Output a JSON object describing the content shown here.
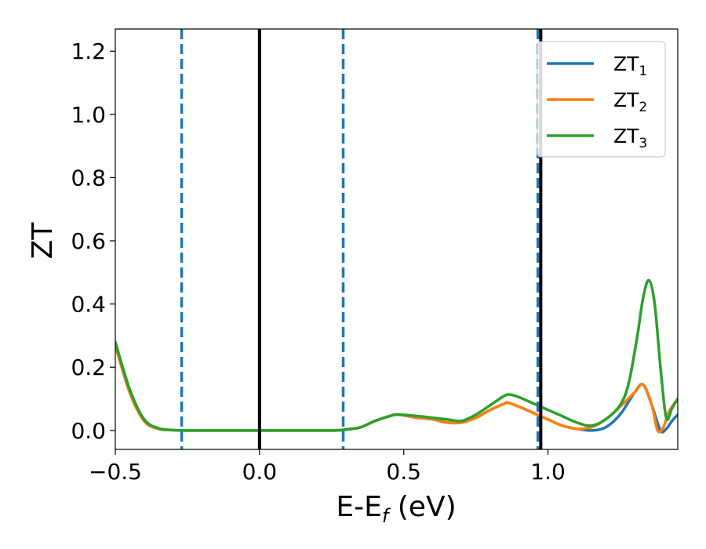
{
  "chart_data": {
    "type": "line",
    "title": "",
    "xlabel": "E-E",
    "xlabel_sub": "f",
    "xlabel_unit": " (eV)",
    "ylabel": "ZT",
    "xlim": [
      -0.5,
      1.45
    ],
    "ylim": [
      -0.06,
      1.27
    ],
    "xticks": [
      -0.5,
      0.0,
      0.5,
      1.0
    ],
    "xtick_labels": [
      "−0.5",
      "0.0",
      "0.5",
      "1.0"
    ],
    "yticks": [
      0.0,
      0.2,
      0.4,
      0.6,
      0.8,
      1.0,
      1.2
    ],
    "ytick_labels": [
      "0.0",
      "0.2",
      "0.4",
      "0.6",
      "0.8",
      "1.0",
      "1.2"
    ],
    "legend_position": "top-right",
    "grid": false,
    "vlines": [
      {
        "x": -0.27,
        "style": "dashed",
        "color": "#1f77b4"
      },
      {
        "x": 0.0,
        "style": "solid",
        "color": "#000000"
      },
      {
        "x": 0.29,
        "style": "dashed",
        "color": "#1f77b4"
      },
      {
        "x": 0.965,
        "style": "dashed",
        "color": "#1f77b4"
      },
      {
        "x": 0.975,
        "style": "solid",
        "color": "#000000"
      }
    ],
    "series": [
      {
        "name": "ZT",
        "name_sub": "1",
        "color": "#1f77b4",
        "x": [
          -0.5,
          -0.45,
          -0.4,
          -0.35,
          -0.3,
          -0.25,
          0.0,
          0.25,
          0.3,
          0.35,
          0.4,
          0.45,
          0.48,
          0.55,
          0.6,
          0.65,
          0.7,
          0.75,
          0.8,
          0.85,
          0.86,
          0.9,
          0.95,
          1.0,
          1.05,
          1.1,
          1.15,
          1.2,
          1.25,
          1.3,
          1.33,
          1.36,
          1.39,
          1.41,
          1.43,
          1.45
        ],
        "y": [
          0.27,
          0.12,
          0.03,
          0.005,
          0.001,
          0.0,
          0.0,
          0.0,
          0.003,
          0.01,
          0.03,
          0.045,
          0.05,
          0.04,
          0.035,
          0.025,
          0.025,
          0.04,
          0.065,
          0.085,
          0.088,
          0.075,
          0.055,
          0.035,
          0.015,
          0.005,
          0.0,
          0.01,
          0.05,
          0.12,
          0.145,
          0.08,
          0.0,
          0.005,
          0.03,
          0.05
        ]
      },
      {
        "name": "ZT",
        "name_sub": "2",
        "color": "#ff7f0e",
        "x": [
          -0.5,
          -0.45,
          -0.4,
          -0.35,
          -0.3,
          -0.25,
          0.0,
          0.25,
          0.3,
          0.35,
          0.4,
          0.45,
          0.48,
          0.55,
          0.6,
          0.65,
          0.7,
          0.75,
          0.8,
          0.85,
          0.86,
          0.9,
          0.95,
          1.0,
          1.05,
          1.1,
          1.15,
          1.2,
          1.25,
          1.3,
          1.33,
          1.36,
          1.38,
          1.4,
          1.42,
          1.45
        ],
        "y": [
          0.27,
          0.12,
          0.03,
          0.005,
          0.001,
          0.0,
          0.0,
          0.0,
          0.003,
          0.01,
          0.03,
          0.045,
          0.05,
          0.04,
          0.035,
          0.025,
          0.025,
          0.04,
          0.065,
          0.085,
          0.088,
          0.075,
          0.055,
          0.035,
          0.015,
          0.005,
          0.01,
          0.035,
          0.075,
          0.12,
          0.145,
          0.08,
          0.0,
          0.01,
          0.06,
          0.1
        ]
      },
      {
        "name": "ZT",
        "name_sub": "3",
        "color": "#2ca02c",
        "x": [
          -0.5,
          -0.45,
          -0.4,
          -0.35,
          -0.3,
          -0.25,
          0.0,
          0.25,
          0.3,
          0.35,
          0.4,
          0.45,
          0.48,
          0.55,
          0.6,
          0.65,
          0.7,
          0.75,
          0.8,
          0.85,
          0.87,
          0.9,
          0.95,
          1.0,
          1.05,
          1.1,
          1.15,
          1.2,
          1.25,
          1.28,
          1.31,
          1.33,
          1.35,
          1.37,
          1.39,
          1.41,
          1.43,
          1.45
        ],
        "y": [
          0.28,
          0.13,
          0.035,
          0.007,
          0.001,
          0.0,
          0.0,
          0.0,
          0.003,
          0.01,
          0.03,
          0.045,
          0.05,
          0.045,
          0.04,
          0.035,
          0.03,
          0.05,
          0.08,
          0.11,
          0.113,
          0.105,
          0.085,
          0.065,
          0.045,
          0.025,
          0.015,
          0.035,
          0.08,
          0.15,
          0.3,
          0.42,
          0.475,
          0.4,
          0.2,
          0.04,
          0.07,
          0.1
        ]
      }
    ]
  }
}
